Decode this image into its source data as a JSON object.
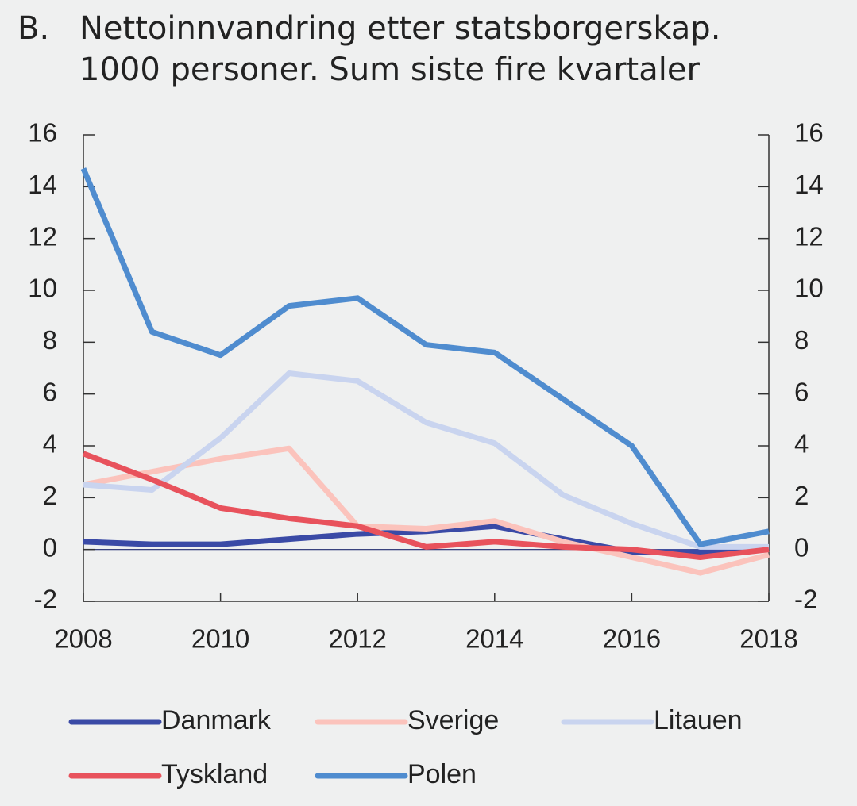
{
  "chart_data": {
    "type": "line",
    "panel": "B.",
    "title": "Nettoinnvandring etter statsborgerskap.",
    "subtitle": "1000 personer. Sum siste fire kvartaler",
    "x": [
      2008,
      2009,
      2010,
      2011,
      2012,
      2013,
      2014,
      2015,
      2016,
      2017,
      2018
    ],
    "xlim": [
      2008,
      2018
    ],
    "xticks": [
      2008,
      2010,
      2012,
      2014,
      2016,
      2018
    ],
    "ylim": [
      -2,
      16
    ],
    "yticks": [
      -2,
      0,
      2,
      4,
      6,
      8,
      10,
      12,
      14,
      16
    ],
    "y2lim": [
      -2,
      16
    ],
    "y2ticks": [
      -2,
      0,
      2,
      4,
      6,
      8,
      10,
      12,
      14,
      16
    ],
    "series": [
      {
        "name": "Danmark",
        "color": "#3a4aa6",
        "values": [
          0.3,
          0.2,
          0.2,
          0.4,
          0.6,
          0.7,
          0.9,
          0.4,
          -0.1,
          -0.1,
          0.1
        ]
      },
      {
        "name": "Sverige",
        "color": "#fbc3bc",
        "values": [
          2.5,
          3.0,
          3.5,
          3.9,
          0.9,
          0.8,
          1.1,
          0.3,
          -0.3,
          -0.9,
          -0.2
        ]
      },
      {
        "name": "Litauen",
        "color": "#c9d4ef",
        "values": [
          2.5,
          2.3,
          4.3,
          6.8,
          6.5,
          4.9,
          4.1,
          2.1,
          1.0,
          0.1,
          0.1
        ]
      },
      {
        "name": "Tyskland",
        "color": "#e8525c",
        "values": [
          3.7,
          2.7,
          1.6,
          1.2,
          0.9,
          0.1,
          0.3,
          0.1,
          0.0,
          -0.3,
          0.0
        ]
      },
      {
        "name": "Polen",
        "color": "#4f8ccf",
        "values": [
          14.7,
          8.4,
          7.5,
          9.4,
          9.7,
          7.9,
          7.6,
          5.8,
          4.0,
          0.2,
          0.7
        ]
      }
    ]
  }
}
